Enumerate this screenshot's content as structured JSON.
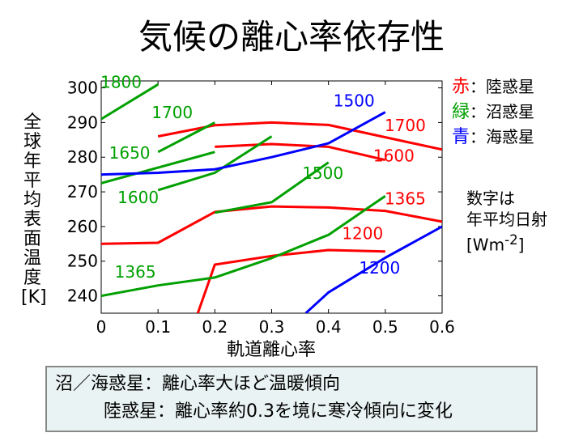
{
  "title": "気候の離心率依存性",
  "legend": [
    {
      "key": "赤",
      "text": "：陸惑星",
      "color": "#ff0000"
    },
    {
      "key": "緑",
      "text": "：沼惑星",
      "color": "#00a000"
    },
    {
      "key": "青",
      "text": "：海惑星",
      "color": "#0000ff"
    }
  ],
  "note": {
    "line1": "数字は",
    "line2": "年平均日射",
    "line3": "[Wm",
    "sup": "-2",
    "line3_end": "]"
  },
  "summary": {
    "line1": "沼／海惑星：離心率大ほど温暖傾向",
    "line2": "陸惑星：離心率約0.3を境に寒冷傾向に変化"
  },
  "chart_data": {
    "type": "line",
    "xlabel": "軌道離心率",
    "ylabel": "全球年平均表面温度[K]",
    "xlim": [
      0,
      0.6
    ],
    "ylim": [
      235,
      302
    ],
    "xticks": [
      "0",
      "0.1",
      "0.2",
      "0.3",
      "0.4",
      "0.5",
      "0.6"
    ],
    "yticks": [
      "240",
      "250",
      "260",
      "270",
      "280",
      "290",
      "300"
    ],
    "series": [
      {
        "name": "1700",
        "planet": "陸惑星",
        "color": "#ff0000",
        "points": [
          [
            0.1,
            286
          ],
          [
            0.2,
            289.2
          ],
          [
            0.3,
            290
          ],
          [
            0.4,
            289.3
          ],
          [
            0.6,
            282.2
          ]
        ]
      },
      {
        "name": "1600",
        "planet": "陸惑星",
        "color": "#ff0000",
        "points": [
          [
            0.2,
            283
          ],
          [
            0.3,
            283.8
          ],
          [
            0.4,
            283
          ],
          [
            0.5,
            279.2
          ]
        ]
      },
      {
        "name": "1365",
        "planet": "陸惑星",
        "color": "#ff0000",
        "points": [
          [
            0,
            255
          ],
          [
            0.1,
            255.3
          ],
          [
            0.2,
            264.2
          ],
          [
            0.3,
            265.8
          ],
          [
            0.4,
            265.5
          ],
          [
            0.5,
            264.5
          ],
          [
            0.6,
            261.4
          ]
        ]
      },
      {
        "name": "1200",
        "planet": "陸惑星",
        "color": "#ff0000",
        "points": [
          [
            0.17,
            235
          ],
          [
            0.2,
            249
          ],
          [
            0.3,
            251.5
          ],
          [
            0.4,
            253.2
          ],
          [
            0.5,
            252.8
          ]
        ]
      },
      {
        "name": "1800",
        "planet": "沼惑星",
        "color": "#00a000",
        "points": [
          [
            0,
            291
          ],
          [
            0.1,
            301
          ]
        ]
      },
      {
        "name": "1700",
        "planet": "沼惑星",
        "color": "#00a000",
        "points": [
          [
            0.1,
            281.5
          ],
          [
            0.2,
            290
          ]
        ]
      },
      {
        "name": "1650",
        "planet": "沼惑星",
        "color": "#00a000",
        "points": [
          [
            0,
            272.5
          ],
          [
            0.2,
            281.5
          ]
        ]
      },
      {
        "name": "1600",
        "planet": "沼惑星",
        "color": "#00a000",
        "points": [
          [
            0.1,
            270.5
          ],
          [
            0.2,
            275.5
          ],
          [
            0.3,
            286
          ]
        ]
      },
      {
        "name": "1500",
        "planet": "沼惑星",
        "color": "#00a000",
        "points": [
          [
            0.2,
            264
          ],
          [
            0.3,
            267
          ],
          [
            0.4,
            278.5
          ]
        ]
      },
      {
        "name": "1365",
        "planet": "沼惑星",
        "color": "#00a000",
        "points": [
          [
            0,
            240
          ],
          [
            0.1,
            243
          ],
          [
            0.2,
            245.3
          ],
          [
            0.3,
            250.9
          ],
          [
            0.4,
            257.6
          ],
          [
            0.5,
            268.8
          ]
        ]
      },
      {
        "name": "1500",
        "planet": "海惑星",
        "color": "#0000ff",
        "points": [
          [
            0,
            275
          ],
          [
            0.1,
            275.5
          ],
          [
            0.2,
            276.5
          ],
          [
            0.3,
            280
          ],
          [
            0.4,
            284
          ],
          [
            0.5,
            293
          ]
        ]
      },
      {
        "name": "1200",
        "planet": "海惑星",
        "color": "#0000ff",
        "points": [
          [
            0.36,
            235
          ],
          [
            0.4,
            241
          ],
          [
            0.5,
            251
          ],
          [
            0.6,
            260
          ]
        ]
      }
    ],
    "labels": [
      {
        "text": "1800",
        "color": "#00a000",
        "x": 0.035,
        "y": 300
      },
      {
        "text": "1700",
        "color": "#00a000",
        "x": 0.125,
        "y": 291.3
      },
      {
        "text": "1650",
        "color": "#00a000",
        "x": 0.05,
        "y": 279.6
      },
      {
        "text": "1600",
        "color": "#00a000",
        "x": 0.065,
        "y": 266.8
      },
      {
        "text": "1500",
        "color": "#00a000",
        "x": 0.39,
        "y": 273.8
      },
      {
        "text": "1365",
        "color": "#00a000",
        "x": 0.06,
        "y": 245.3
      },
      {
        "text": "1500",
        "color": "#0000ff",
        "x": 0.445,
        "y": 294.7
      },
      {
        "text": "1700",
        "color": "#ff0000",
        "x": 0.535,
        "y": 287.5
      },
      {
        "text": "1600",
        "color": "#ff0000",
        "x": 0.515,
        "y": 278.8
      },
      {
        "text": "1365",
        "color": "#ff0000",
        "x": 0.535,
        "y": 266.4
      },
      {
        "text": "1200",
        "color": "#ff0000",
        "x": 0.46,
        "y": 256.4
      },
      {
        "text": "1200",
        "color": "#0000ff",
        "x": 0.49,
        "y": 246.4
      }
    ]
  }
}
